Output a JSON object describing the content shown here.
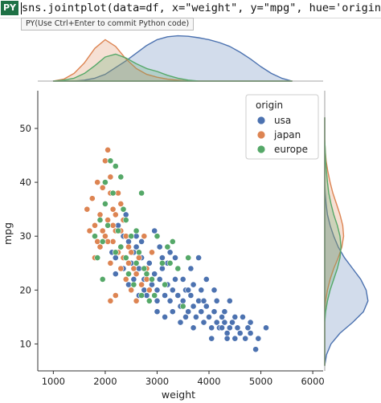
{
  "formula_bar": {
    "badge": "PY",
    "code": "sns.jointplot(data=df, x=\"weight\", y=\"mpg\", hue='origin')",
    "tooltip": "PY(Use Ctrl+Enter to commit Python code)"
  },
  "chart_data": {
    "type": "scatter",
    "title": "",
    "xlabel": "weight",
    "ylabel": "mpg",
    "xlim": [
      700,
      6200
    ],
    "ylim": [
      5,
      57
    ],
    "xticks": [
      1000,
      2000,
      3000,
      4000,
      5000,
      6000
    ],
    "yticks": [
      10,
      20,
      30,
      40,
      50
    ],
    "grid": false,
    "marginals": "kde",
    "legend": {
      "title": "origin",
      "placement": "top-right",
      "entries": [
        "usa",
        "japan",
        "europe"
      ]
    },
    "colors": {
      "usa": "#4c72b0",
      "japan": "#dd8452",
      "europe": "#55a868"
    },
    "series": [
      {
        "name": "usa",
        "points": [
          [
            2130,
            27
          ],
          [
            2200,
            26
          ],
          [
            2300,
            28
          ],
          [
            2350,
            30
          ],
          [
            2400,
            26
          ],
          [
            2450,
            29
          ],
          [
            2500,
            25
          ],
          [
            2550,
            27
          ],
          [
            2600,
            28
          ],
          [
            2650,
            24
          ],
          [
            2700,
            26
          ],
          [
            2750,
            22
          ],
          [
            2800,
            24
          ],
          [
            2850,
            25
          ],
          [
            2900,
            21
          ],
          [
            2950,
            23
          ],
          [
            3000,
            20
          ],
          [
            3050,
            22
          ],
          [
            3100,
            24
          ],
          [
            3150,
            19
          ],
          [
            3200,
            21
          ],
          [
            3250,
            18
          ],
          [
            3300,
            20
          ],
          [
            3350,
            22
          ],
          [
            3400,
            19
          ],
          [
            3450,
            17
          ],
          [
            3500,
            18
          ],
          [
            3550,
            20
          ],
          [
            3600,
            16
          ],
          [
            3650,
            19
          ],
          [
            3700,
            17
          ],
          [
            3750,
            15
          ],
          [
            3800,
            18
          ],
          [
            3850,
            16
          ],
          [
            3900,
            14
          ],
          [
            3950,
            17
          ],
          [
            4000,
            15
          ],
          [
            4050,
            13
          ],
          [
            4100,
            16
          ],
          [
            4150,
            14
          ],
          [
            4200,
            13
          ],
          [
            4250,
            15
          ],
          [
            4300,
            14
          ],
          [
            4350,
            12
          ],
          [
            4400,
            13
          ],
          [
            4450,
            14
          ],
          [
            4500,
            11
          ],
          [
            4550,
            13
          ],
          [
            4600,
            12
          ],
          [
            4700,
            11
          ],
          [
            4750,
            13
          ],
          [
            4800,
            12
          ],
          [
            4900,
            9
          ],
          [
            4950,
            11
          ],
          [
            5100,
            13
          ],
          [
            2250,
            32
          ],
          [
            2400,
            34
          ],
          [
            2600,
            30
          ],
          [
            2900,
            27
          ],
          [
            3100,
            26
          ],
          [
            3200,
            25
          ],
          [
            3400,
            24
          ],
          [
            3500,
            22
          ],
          [
            3700,
            21
          ],
          [
            3850,
            20
          ],
          [
            4100,
            20
          ],
          [
            4400,
            18
          ],
          [
            2800,
            19
          ],
          [
            3000,
            18
          ],
          [
            3300,
            16
          ],
          [
            3550,
            15
          ],
          [
            3900,
            14
          ],
          [
            4250,
            13
          ],
          [
            2350,
            24
          ],
          [
            2550,
            22
          ],
          [
            2750,
            20
          ],
          [
            3050,
            28
          ],
          [
            3350,
            26
          ],
          [
            3650,
            24
          ],
          [
            3950,
            22
          ],
          [
            4300,
            16
          ],
          [
            4650,
            15
          ],
          [
            3800,
            26
          ],
          [
            2950,
            31
          ],
          [
            2200,
            23
          ],
          [
            2450,
            21
          ],
          [
            3150,
            15
          ],
          [
            3450,
            14
          ],
          [
            4050,
            11
          ],
          [
            4500,
            15
          ],
          [
            2700,
            29
          ],
          [
            3250,
            27
          ],
          [
            3600,
            20
          ],
          [
            4150,
            18
          ],
          [
            4800,
            14
          ],
          [
            3000,
            16
          ],
          [
            3700,
            13
          ],
          [
            4350,
            11
          ],
          [
            2650,
            19
          ],
          [
            3900,
            18
          ]
        ]
      },
      {
        "name": "japan",
        "points": [
          [
            1650,
            35
          ],
          [
            1750,
            37
          ],
          [
            1800,
            32
          ],
          [
            1850,
            40
          ],
          [
            1900,
            34
          ],
          [
            1950,
            31
          ],
          [
            2000,
            36
          ],
          [
            2050,
            33
          ],
          [
            2100,
            38
          ],
          [
            2150,
            29
          ],
          [
            2200,
            31
          ],
          [
            2250,
            27
          ],
          [
            2300,
            24
          ],
          [
            2350,
            26
          ],
          [
            2400,
            22
          ],
          [
            2450,
            25
          ],
          [
            2500,
            20
          ],
          [
            2600,
            23
          ],
          [
            2700,
            21
          ],
          [
            2800,
            24
          ],
          [
            1900,
            28
          ],
          [
            2000,
            44
          ],
          [
            2050,
            46
          ],
          [
            2100,
            41
          ],
          [
            2150,
            35
          ],
          [
            2200,
            34
          ],
          [
            2300,
            31
          ],
          [
            2400,
            30
          ],
          [
            2500,
            27
          ],
          [
            1800,
            26
          ],
          [
            2000,
            30
          ],
          [
            2100,
            25
          ],
          [
            2200,
            19
          ],
          [
            2600,
            18
          ],
          [
            2800,
            22
          ],
          [
            2900,
            27
          ],
          [
            2300,
            36
          ],
          [
            1950,
            39
          ],
          [
            2050,
            29
          ],
          [
            2150,
            32
          ],
          [
            1700,
            31
          ],
          [
            2250,
            38
          ],
          [
            2350,
            33
          ],
          [
            2450,
            28
          ],
          [
            2550,
            24
          ],
          [
            2650,
            26
          ],
          [
            2100,
            18
          ],
          [
            2750,
            30
          ],
          [
            2850,
            20
          ],
          [
            1850,
            29
          ]
        ]
      },
      {
        "name": "europe",
        "points": [
          [
            1800,
            30
          ],
          [
            1850,
            26
          ],
          [
            1900,
            33
          ],
          [
            1950,
            29
          ],
          [
            2000,
            36
          ],
          [
            2050,
            32
          ],
          [
            2100,
            44
          ],
          [
            2150,
            38
          ],
          [
            2200,
            43
          ],
          [
            2250,
            31
          ],
          [
            2300,
            28
          ],
          [
            2350,
            35
          ],
          [
            2400,
            26
          ],
          [
            2450,
            23
          ],
          [
            2500,
            30
          ],
          [
            2550,
            21
          ],
          [
            2600,
            25
          ],
          [
            2650,
            27
          ],
          [
            2700,
            19
          ],
          [
            2800,
            23
          ],
          [
            2900,
            22
          ],
          [
            3000,
            30
          ],
          [
            3100,
            25
          ],
          [
            3200,
            28
          ],
          [
            3300,
            29
          ],
          [
            3400,
            24
          ],
          [
            3500,
            17
          ],
          [
            3600,
            26
          ],
          [
            2000,
            40
          ],
          [
            2700,
            38
          ],
          [
            2850,
            18
          ],
          [
            2950,
            19
          ],
          [
            2400,
            33
          ],
          [
            2200,
            27
          ],
          [
            3150,
            21
          ],
          [
            1950,
            22
          ],
          [
            2300,
            41
          ],
          [
            2600,
            31
          ],
          [
            2750,
            24
          ],
          [
            3250,
            25
          ]
        ]
      }
    ],
    "marginal_x": {
      "x": [
        1000,
        1200,
        1400,
        1600,
        1800,
        2000,
        2200,
        2400,
        2600,
        2800,
        3000,
        3200,
        3400,
        3600,
        3800,
        4000,
        4200,
        4400,
        4600,
        4800,
        5000,
        5200,
        5400,
        5600
      ],
      "usa": [
        0,
        0,
        0,
        0.02,
        0.06,
        0.14,
        0.28,
        0.42,
        0.58,
        0.74,
        0.86,
        0.92,
        0.94,
        0.93,
        0.9,
        0.86,
        0.8,
        0.72,
        0.6,
        0.46,
        0.3,
        0.16,
        0.06,
        0
      ],
      "japan": [
        0,
        0.04,
        0.16,
        0.38,
        0.68,
        0.86,
        0.72,
        0.46,
        0.26,
        0.14,
        0.08,
        0.04,
        0.02,
        0,
        0,
        0,
        0,
        0,
        0,
        0,
        0,
        0,
        0,
        0
      ],
      "europe": [
        0,
        0.02,
        0.06,
        0.16,
        0.32,
        0.5,
        0.56,
        0.48,
        0.36,
        0.26,
        0.2,
        0.12,
        0.06,
        0.02,
        0,
        0,
        0,
        0,
        0,
        0,
        0,
        0,
        0,
        0
      ]
    },
    "marginal_y": {
      "y": [
        6,
        8,
        10,
        12,
        14,
        16,
        18,
        20,
        22,
        24,
        26,
        28,
        30,
        32,
        34,
        36,
        38,
        40,
        42,
        44,
        46,
        48,
        50,
        52
      ],
      "usa": [
        0,
        0.04,
        0.14,
        0.34,
        0.62,
        0.86,
        0.96,
        0.92,
        0.8,
        0.62,
        0.44,
        0.3,
        0.2,
        0.12,
        0.06,
        0.03,
        0.01,
        0,
        0,
        0,
        0,
        0,
        0,
        0
      ],
      "japan": [
        0,
        0,
        0,
        0,
        0,
        0,
        0.02,
        0.06,
        0.12,
        0.2,
        0.3,
        0.38,
        0.42,
        0.4,
        0.34,
        0.26,
        0.18,
        0.12,
        0.07,
        0.03,
        0.01,
        0,
        0,
        0
      ],
      "europe": [
        0,
        0,
        0,
        0,
        0,
        0.02,
        0.06,
        0.12,
        0.2,
        0.28,
        0.34,
        0.36,
        0.34,
        0.28,
        0.2,
        0.14,
        0.09,
        0.06,
        0.04,
        0.02,
        0.01,
        0,
        0,
        0
      ]
    }
  }
}
